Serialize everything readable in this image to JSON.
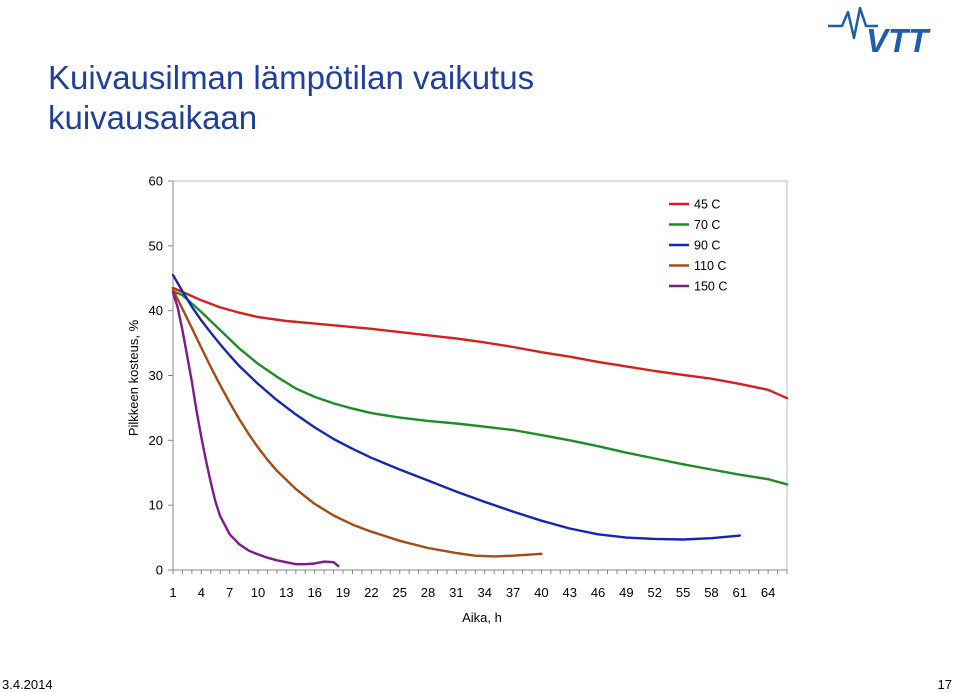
{
  "page": {
    "title_line1": "Kuivausilman lämpötilan vaikutus",
    "title_line2": "kuivausaikaan",
    "footer_date": "3.4.2014",
    "footer_page": "17",
    "logo_text": "VTT"
  },
  "colors": {
    "title": "#1f3f9e",
    "logo": "#1d5fad"
  },
  "chart_data": {
    "type": "line",
    "title": "",
    "xlabel": "Aika, h",
    "ylabel": "Pilkkeen kosteus, %",
    "xlim": [
      1,
      66
    ],
    "ylim": [
      0,
      60
    ],
    "xticks": [
      1,
      4,
      7,
      10,
      13,
      16,
      19,
      22,
      25,
      28,
      31,
      34,
      37,
      40,
      43,
      46,
      49,
      52,
      55,
      58,
      61,
      64
    ],
    "yticks": [
      0,
      10,
      20,
      30,
      40,
      50,
      60
    ],
    "grid": false,
    "legend_position": "top-right",
    "series": [
      {
        "name": "45 C",
        "color": "#d42020",
        "x": [
          1,
          2,
          4,
          6,
          8,
          10,
          13,
          16,
          19,
          22,
          25,
          28,
          31,
          34,
          37,
          40,
          43,
          46,
          49,
          52,
          55,
          58,
          61,
          64,
          66
        ],
        "y": [
          43.5,
          42.9,
          41.6,
          40.5,
          39.7,
          39.0,
          38.4,
          38.0,
          37.6,
          37.2,
          36.7,
          36.2,
          35.7,
          35.1,
          34.4,
          33.6,
          32.9,
          32.1,
          31.4,
          30.7,
          30.1,
          29.5,
          28.7,
          27.8,
          26.5
        ]
      },
      {
        "name": "70 C",
        "color": "#1e8c28",
        "x": [
          1,
          2,
          4,
          6,
          8,
          10,
          12,
          14,
          16,
          18,
          20,
          22,
          25,
          28,
          31,
          34,
          37,
          40,
          43,
          46,
          49,
          52,
          55,
          58,
          61,
          64,
          66
        ],
        "y": [
          43.0,
          42.4,
          39.8,
          37.0,
          34.2,
          31.8,
          29.8,
          28.0,
          26.7,
          25.7,
          24.9,
          24.2,
          23.5,
          23.0,
          22.6,
          22.1,
          21.6,
          20.8,
          20.0,
          19.1,
          18.1,
          17.2,
          16.3,
          15.5,
          14.7,
          14.0,
          13.2
        ]
      },
      {
        "name": "90 C",
        "color": "#1426b8",
        "x": [
          1,
          2,
          3,
          4,
          5,
          6,
          7,
          8,
          10,
          12,
          14,
          16,
          18,
          20,
          22,
          25,
          28,
          31,
          34,
          37,
          40,
          43,
          46,
          49,
          52,
          55,
          58,
          61
        ],
        "y": [
          45.5,
          43.0,
          40.6,
          38.5,
          36.6,
          34.8,
          33.1,
          31.5,
          28.7,
          26.2,
          24.0,
          22.0,
          20.2,
          18.7,
          17.3,
          15.5,
          13.8,
          12.1,
          10.5,
          9.0,
          7.6,
          6.4,
          5.5,
          5.0,
          4.8,
          4.7,
          4.9,
          5.3
        ]
      },
      {
        "name": "110 C",
        "color": "#a84a14",
        "x": [
          1,
          2,
          3,
          4,
          5,
          6,
          7,
          8,
          9,
          10,
          11,
          12,
          14,
          16,
          18,
          20,
          22,
          25,
          28,
          31,
          33,
          35,
          37,
          39,
          40
        ],
        "y": [
          43.2,
          40.3,
          37.3,
          34.3,
          31.3,
          28.5,
          25.8,
          23.3,
          21.0,
          18.9,
          17.0,
          15.3,
          12.5,
          10.2,
          8.4,
          7.0,
          5.9,
          4.5,
          3.4,
          2.6,
          2.2,
          2.1,
          2.2,
          2.4,
          2.5
        ]
      },
      {
        "name": "150 C",
        "color": "#7e1a8c",
        "x": [
          1,
          1.5,
          2,
          2.5,
          3,
          3.5,
          4,
          4.5,
          5,
          5.5,
          6,
          7,
          8,
          9,
          10,
          11,
          12,
          13,
          14,
          15,
          16,
          17,
          18,
          18.5
        ],
        "y": [
          42.8,
          40.5,
          37.0,
          33.0,
          29.0,
          24.5,
          20.5,
          16.8,
          13.5,
          10.5,
          8.3,
          5.5,
          4.0,
          3.0,
          2.4,
          1.9,
          1.5,
          1.2,
          0.9,
          0.9,
          1.0,
          1.3,
          1.2,
          0.6
        ]
      }
    ]
  }
}
